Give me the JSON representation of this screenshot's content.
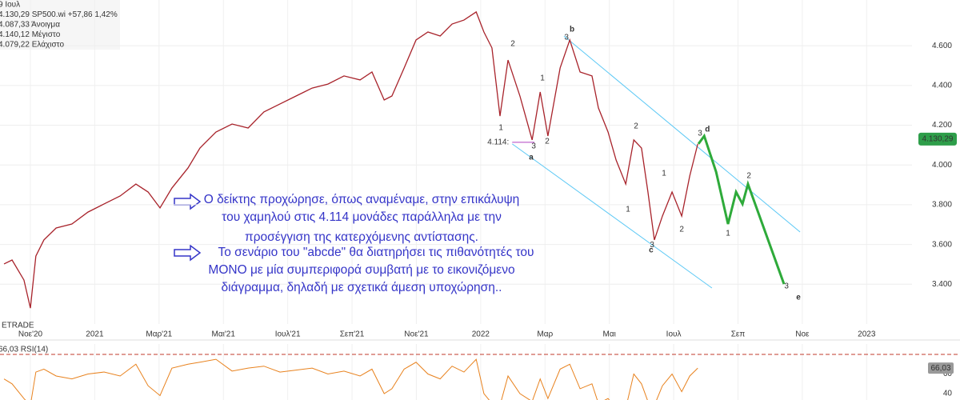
{
  "chart_data": {
    "type": "line",
    "info": [
      "9 Ιουλ",
      "4.130,29 SP500.wi +57,86 1,42%",
      "4.087,33 Άνοιγμα",
      "4.140,12 Μέγιστο",
      "4.079,22 Ελάχιστο"
    ],
    "watermark": "ETRADE",
    "xlim": [
      -0.945,
      27.41
    ],
    "xticks": [
      {
        "value": 0,
        "label": "Νοε'20"
      },
      {
        "value": 2,
        "label": "2021"
      },
      {
        "value": 4,
        "label": "Μαρ'21"
      },
      {
        "value": 6,
        "label": "Μαι'21"
      },
      {
        "value": 8,
        "label": "Ιουλ'21"
      },
      {
        "value": 10,
        "label": "Σεπ'21"
      },
      {
        "value": 12,
        "label": "Νοε'21"
      },
      {
        "value": 14,
        "label": "2022"
      },
      {
        "value": 16,
        "label": "Μαρ"
      },
      {
        "value": 18,
        "label": "Μαι"
      },
      {
        "value": 20,
        "label": "Ιουλ"
      },
      {
        "value": 22,
        "label": "Σεπ"
      },
      {
        "value": 24,
        "label": "Νοε"
      },
      {
        "value": 26,
        "label": "2023"
      }
    ],
    "ylim": [
      3200,
      4830
    ],
    "yticks": [
      {
        "value": 3400,
        "label": "3.400"
      },
      {
        "value": 3600,
        "label": "3.600"
      },
      {
        "value": 3800,
        "label": "3.800"
      },
      {
        "value": 4000,
        "label": "4.000"
      },
      {
        "value": 4200,
        "label": "4.200"
      },
      {
        "value": 4400,
        "label": "4.400"
      },
      {
        "value": 4600,
        "label": "4.600"
      }
    ],
    "grid": true,
    "x": [
      -0.82,
      -0.57,
      -0.2,
      0,
      0.17,
      0.42,
      0.8,
      1.29,
      1.79,
      2.29,
      2.79,
      3.28,
      3.66,
      4.03,
      4.4,
      4.9,
      5.27,
      5.77,
      6.27,
      6.77,
      7.26,
      7.76,
      8.26,
      8.76,
      9.25,
      9.75,
      10.25,
      10.62,
      11.0,
      11.24,
      11.62,
      11.99,
      12.36,
      12.74,
      13.11,
      13.48,
      13.86,
      14.1,
      14.35,
      14.6,
      14.85,
      15.22,
      15.6,
      15.85,
      16.09,
      16.47,
      16.77,
      17.09,
      17.46,
      17.66,
      17.96,
      18.21,
      18.51,
      18.76,
      19.0,
      19.2,
      19.4,
      19.65,
      19.95,
      20.25,
      20.5,
      20.75
    ],
    "price": {
      "color": "#a8232b",
      "values": [
        3502,
        3522,
        3421,
        3280,
        3542,
        3623,
        3683,
        3703,
        3763,
        3804,
        3844,
        3904,
        3864,
        3784,
        3884,
        3985,
        4085,
        4166,
        4206,
        4186,
        4267,
        4307,
        4347,
        4387,
        4407,
        4448,
        4428,
        4468,
        4327,
        4347,
        4488,
        4629,
        4669,
        4649,
        4709,
        4729,
        4770,
        4669,
        4589,
        4246,
        4528,
        4347,
        4126,
        4367,
        4146,
        4488,
        4629,
        4468,
        4448,
        4287,
        4166,
        4025,
        3904,
        4126,
        4085,
        3864,
        3623,
        3743,
        3864,
        3743,
        3945,
        4106
      ]
    },
    "last_price": {
      "value": 4130.29,
      "label": "4.130,29",
      "color": "#2e9e4a"
    },
    "projection": {
      "color": "#2eaa3a",
      "x": [
        20.77,
        20.95,
        21.32,
        21.69,
        21.94,
        22.14,
        22.31,
        23.43
      ],
      "values": [
        4106,
        4146,
        3965,
        3703,
        3864,
        3804,
        3904,
        3401
      ]
    },
    "channel_color": "#5bc8f5",
    "channels": [
      {
        "x": [
          16.59,
          23.93
        ],
        "y": [
          4649,
          3663
        ]
      },
      {
        "x": [
          14.98,
          21.19
        ],
        "y": [
          4106,
          3381
        ]
      }
    ],
    "support": {
      "label": "4.114:",
      "value": 4114,
      "x": [
        14.98,
        15.67
      ],
      "color": "#b040c0"
    },
    "labels": [
      {
        "text": "2",
        "x": 15.0,
        "y": 4609,
        "color": "#2d3fd0"
      },
      {
        "text": "1",
        "x": 15.92,
        "y": 4436,
        "color": "#2d3fd0"
      },
      {
        "text": "1",
        "x": 14.63,
        "y": 4186,
        "color": "#2d3fd0"
      },
      {
        "text": "2",
        "x": 16.07,
        "y": 4118,
        "color": "#2d3fd0"
      },
      {
        "text": "3",
        "x": 15.65,
        "y": 4094,
        "color": "#2d3fd0"
      },
      {
        "text": "a",
        "x": 15.57,
        "y": 4037,
        "color": "#cc1f1f"
      },
      {
        "text": "b",
        "x": 16.84,
        "y": 4681,
        "color": "#cc1f1f"
      },
      {
        "text": "3",
        "x": 16.67,
        "y": 4641,
        "color": "#2d3fd0"
      },
      {
        "text": "2",
        "x": 18.83,
        "y": 4194,
        "color": "#2d3fd0"
      },
      {
        "text": "1",
        "x": 18.58,
        "y": 3776,
        "color": "#2d3fd0"
      },
      {
        "text": "1",
        "x": 19.7,
        "y": 3957,
        "color": "#2d3fd0"
      },
      {
        "text": "2",
        "x": 20.25,
        "y": 3675,
        "color": "#2d3fd0"
      },
      {
        "text": "3",
        "x": 19.33,
        "y": 3598,
        "color": "#2d3fd0"
      },
      {
        "text": "c",
        "x": 19.3,
        "y": 3570,
        "color": "#cc1f1f"
      },
      {
        "text": "3",
        "x": 20.82,
        "y": 4158,
        "color": "#2d3fd0"
      },
      {
        "text": "d",
        "x": 21.05,
        "y": 4178,
        "color": "#cc1f1f"
      },
      {
        "text": "2",
        "x": 22.34,
        "y": 3945,
        "color": "#2d3fd0"
      },
      {
        "text": "1",
        "x": 21.69,
        "y": 3655,
        "color": "#2d3fd0"
      },
      {
        "text": "3",
        "x": 23.51,
        "y": 3389,
        "color": "#2d3fd0"
      },
      {
        "text": "e",
        "x": 23.88,
        "y": 3333,
        "color": "#cc1f1f"
      }
    ],
    "note": [
      "Ο δείκτης προχώρησε, όπως αναμέναμε, στην επικάλυψη",
      "του χαμηλού στις 4.114 μονάδες παράλληλα με την",
      "προσέγγιση της κατερχόμενης αντίστασης.",
      "Το σενάριο του \"abcde\" θα διατηρήσει τις πιθανότητές του",
      "ΜΟΝΟ με μία συμπεριφορά συμβατή με το εικονιζόμενο",
      "διάγραμμα, δηλαδή με σχετικά άμεση υποχώρηση.."
    ],
    "rsi": {
      "label": "66,03 RSI(14)",
      "color": "#e8821e",
      "ylim": [
        33.5,
        90.6
      ],
      "yticks": [
        40,
        60
      ],
      "level": 80,
      "last": {
        "value": 66.03,
        "label": "66,03"
      },
      "values": [
        55,
        50,
        35,
        28,
        62,
        65,
        58,
        55,
        60,
        62,
        58,
        70,
        48,
        38,
        66,
        70,
        72,
        75,
        63,
        66,
        68,
        62,
        64,
        66,
        60,
        63,
        58,
        65,
        40,
        45,
        65,
        72,
        60,
        55,
        68,
        62,
        75,
        40,
        30,
        28,
        58,
        40,
        32,
        55,
        35,
        65,
        70,
        45,
        50,
        30,
        35,
        25,
        25,
        60,
        50,
        32,
        28,
        48,
        60,
        42,
        58,
        66.03
      ]
    }
  }
}
